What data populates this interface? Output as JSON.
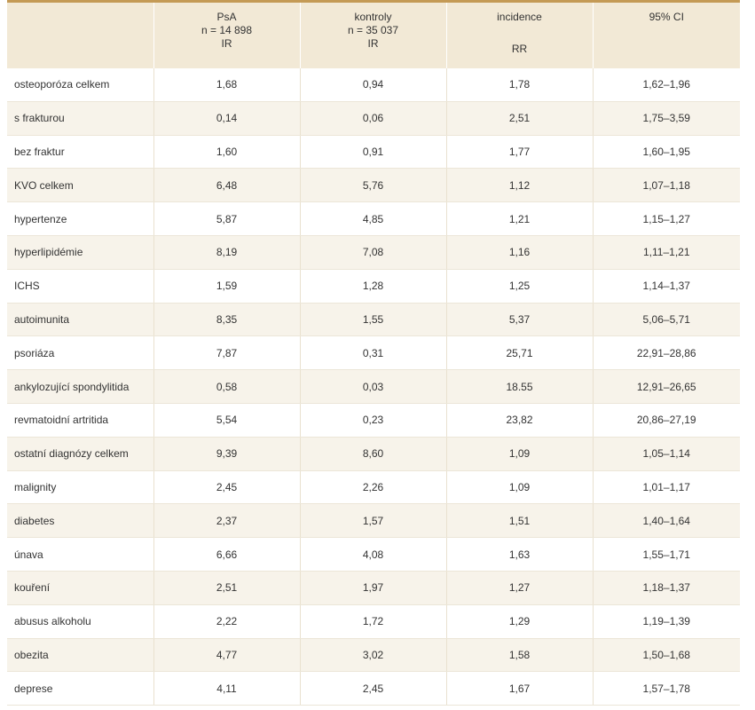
{
  "header": {
    "col0": "",
    "col1": {
      "line1": "PsA",
      "line2": "n = 14 898",
      "line3": "IR"
    },
    "col2": {
      "line1": "kontroly",
      "line2": "n = 35 037",
      "line3": "IR"
    },
    "col3": {
      "line1": "incidence",
      "line3": "RR"
    },
    "col4": {
      "line1": "95% CI"
    }
  },
  "rows": [
    {
      "label": "osteoporóza celkem",
      "psa": "1,68",
      "kontroly": "0,94",
      "rr": "1,78",
      "ci": "1,62–1,96"
    },
    {
      "label": "s frakturou",
      "psa": "0,14",
      "kontroly": "0,06",
      "rr": "2,51",
      "ci": "1,75–3,59"
    },
    {
      "label": "bez fraktur",
      "psa": "1,60",
      "kontroly": "0,91",
      "rr": "1,77",
      "ci": "1,60–1,95"
    },
    {
      "label": "KVO celkem",
      "psa": "6,48",
      "kontroly": "5,76",
      "rr": "1,12",
      "ci": "1,07–1,18"
    },
    {
      "label": "hypertenze",
      "psa": "5,87",
      "kontroly": "4,85",
      "rr": "1,21",
      "ci": "1,15–1,27"
    },
    {
      "label": "hyperlipidémie",
      "psa": "8,19",
      "kontroly": "7,08",
      "rr": "1,16",
      "ci": "1,11–1,21"
    },
    {
      "label": "ICHS",
      "psa": "1,59",
      "kontroly": "1,28",
      "rr": "1,25",
      "ci": "1,14–1,37"
    },
    {
      "label": "autoimunita",
      "psa": "8,35",
      "kontroly": "1,55",
      "rr": "5,37",
      "ci": "5,06–5,71"
    },
    {
      "label": "psoriáza",
      "psa": "7,87",
      "kontroly": "0,31",
      "rr": "25,71",
      "ci": "22,91–28,86"
    },
    {
      "label": "ankylozující spondylitida",
      "psa": "0,58",
      "kontroly": "0,03",
      "rr": "18.55",
      "ci": "12,91–26,65"
    },
    {
      "label": "revmatoidní artritida",
      "psa": "5,54",
      "kontroly": "0,23",
      "rr": "23,82",
      "ci": "20,86–27,19"
    },
    {
      "label": "ostatní diagnózy celkem",
      "psa": "9,39",
      "kontroly": "8,60",
      "rr": "1,09",
      "ci": "1,05–1,14"
    },
    {
      "label": "malignity",
      "psa": "2,45",
      "kontroly": "2,26",
      "rr": "1,09",
      "ci": "1,01–1,17"
    },
    {
      "label": "diabetes",
      "psa": "2,37",
      "kontroly": "1,57",
      "rr": "1,51",
      "ci": "1,40–1,64"
    },
    {
      "label": "únava",
      "psa": "6,66",
      "kontroly": "4,08",
      "rr": "1,63",
      "ci": "1,55–1,71"
    },
    {
      "label": "kouření",
      "psa": "2,51",
      "kontroly": "1,97",
      "rr": "1,27",
      "ci": "1,18–1,37"
    },
    {
      "label": "abusus alkoholu",
      "psa": "2,22",
      "kontroly": "1,72",
      "rr": "1,29",
      "ci": "1,19–1,39"
    },
    {
      "label": "obezita",
      "psa": "4,77",
      "kontroly": "3,02",
      "rr": "1,58",
      "ci": "1,50–1,68"
    },
    {
      "label": "deprese",
      "psa": "4,11",
      "kontroly": "2,45",
      "rr": "1,67",
      "ci": "1,57–1,78"
    }
  ],
  "colors": {
    "header_bg": "#f2e9d6",
    "header_rule": "#c49a55",
    "stripe": "#f7f3ea"
  }
}
